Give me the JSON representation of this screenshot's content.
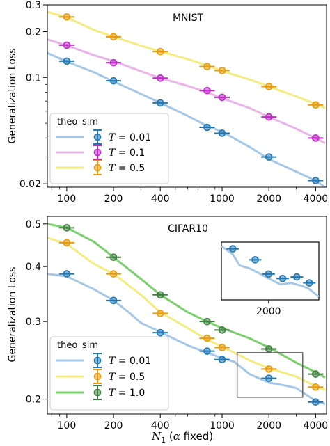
{
  "chart_data": [
    {
      "type": "line",
      "title": "MNIST",
      "xlabel": "",
      "ylabel": "Generalization Loss",
      "xscale": "log",
      "yscale": "log",
      "xlim": [
        75,
        4700
      ],
      "ylim": [
        0.019,
        0.3
      ],
      "xticks": [
        100,
        200,
        400,
        1000,
        2000,
        4000
      ],
      "xtick_labels": [
        "100",
        "200",
        "400",
        "1000",
        "2000",
        "4000"
      ],
      "yticks": [
        0.02,
        0.1,
        0.2,
        0.3
      ],
      "ytick_labels": [
        "0.02",
        "0.1",
        "0.2",
        "0.3"
      ],
      "legend": {
        "placement": "lower-left",
        "col_headers": [
          "theo",
          "sim"
        ],
        "entries": [
          "T=0.01",
          "T=0.1",
          "T=0.5"
        ]
      },
      "series": [
        {
          "name": "T=0.01",
          "color": "#1f77b4",
          "line_color": "#a6c8e8",
          "theory": [
            [
              75,
              0.145
            ],
            [
              100,
              0.127
            ],
            [
              150,
              0.108
            ],
            [
              200,
              0.094
            ],
            [
              300,
              0.078
            ],
            [
              400,
              0.068
            ],
            [
              600,
              0.056
            ],
            [
              800,
              0.048
            ],
            [
              1000,
              0.044
            ],
            [
              1500,
              0.035
            ],
            [
              2000,
              0.029
            ],
            [
              3000,
              0.024
            ],
            [
              4000,
              0.021
            ],
            [
              4600,
              0.019
            ]
          ],
          "sim_x": [
            100,
            200,
            400,
            800,
            1000,
            2000,
            4000
          ],
          "sim_y": [
            0.128,
            0.095,
            0.068,
            0.047,
            0.043,
            0.03,
            0.021
          ]
        },
        {
          "name": "T=0.1",
          "color": "#c02ac8",
          "line_color": "#e9b4ea",
          "theory": [
            [
              75,
              0.178
            ],
            [
              100,
              0.162
            ],
            [
              150,
              0.14
            ],
            [
              200,
              0.128
            ],
            [
              300,
              0.11
            ],
            [
              400,
              0.099
            ],
            [
              600,
              0.088
            ],
            [
              800,
              0.08
            ],
            [
              1000,
              0.073
            ],
            [
              1500,
              0.063
            ],
            [
              2000,
              0.055
            ],
            [
              3000,
              0.046
            ],
            [
              4000,
              0.04
            ],
            [
              4600,
              0.037
            ]
          ],
          "sim_x": [
            100,
            200,
            400,
            800,
            1000,
            2000,
            4000
          ],
          "sim_y": [
            0.163,
            0.125,
            0.099,
            0.082,
            0.074,
            0.055,
            0.04
          ]
        },
        {
          "name": "T=0.5",
          "color": "#e89a0e",
          "line_color": "#f4ec7e",
          "theory": [
            [
              75,
              0.27
            ],
            [
              100,
              0.248
            ],
            [
              150,
              0.205
            ],
            [
              200,
              0.185
            ],
            [
              300,
              0.162
            ],
            [
              400,
              0.148
            ],
            [
              600,
              0.132
            ],
            [
              800,
              0.12
            ],
            [
              1000,
              0.11
            ],
            [
              1500,
              0.097
            ],
            [
              2000,
              0.087
            ],
            [
              3000,
              0.075
            ],
            [
              4000,
              0.067
            ],
            [
              4600,
              0.063
            ]
          ],
          "sim_x": [
            100,
            200,
            400,
            800,
            1000,
            2000,
            4000
          ],
          "sim_y": [
            0.25,
            0.185,
            0.148,
            0.118,
            0.111,
            0.087,
            0.066
          ]
        }
      ]
    },
    {
      "type": "line",
      "title": "CIFAR10",
      "xlabel": "N₁ (α fixed)",
      "ylabel": "Generalization Loss",
      "xscale": "log",
      "yscale": "log",
      "xlim": [
        75,
        4700
      ],
      "ylim": [
        0.185,
        0.52
      ],
      "xticks": [
        100,
        200,
        400,
        1000,
        2000,
        4000
      ],
      "xtick_labels": [
        "100",
        "200",
        "400",
        "1000",
        "2000",
        "4000"
      ],
      "yticks": [
        0.2,
        0.3,
        0.4,
        0.5
      ],
      "ytick_labels": [
        "0.2",
        "0.3",
        "0.4",
        "0.5"
      ],
      "legend": {
        "placement": "lower-left",
        "col_headers": [
          "theo",
          "sim"
        ],
        "entries": [
          "T=0.01",
          "T=0.5",
          "T=1.0"
        ]
      },
      "series": [
        {
          "name": "T=0.01",
          "color": "#1f77b4",
          "line_color": "#a6c8e8",
          "theory": [
            [
              75,
              0.385
            ],
            [
              100,
              0.38
            ],
            [
              150,
              0.355
            ],
            [
              200,
              0.335
            ],
            [
              250,
              0.315
            ],
            [
              300,
              0.298
            ],
            [
              400,
              0.284
            ],
            [
              600,
              0.265
            ],
            [
              800,
              0.255
            ],
            [
              1000,
              0.248
            ],
            [
              1200,
              0.243
            ],
            [
              1500,
              0.228
            ],
            [
              2000,
              0.218
            ],
            [
              2500,
              0.215
            ],
            [
              3000,
              0.212
            ],
            [
              4000,
              0.198
            ],
            [
              4600,
              0.195
            ]
          ],
          "sim_x": [
            100,
            200,
            400,
            800,
            1000,
            2000,
            4000
          ],
          "sim_y": [
            0.385,
            0.335,
            0.283,
            0.257,
            0.246,
            0.223,
            0.197
          ]
        },
        {
          "name": "T=0.5",
          "color": "#e89a0e",
          "line_color": "#f4ec7e",
          "theory": [
            [
              75,
              0.465
            ],
            [
              100,
              0.45
            ],
            [
              150,
              0.405
            ],
            [
              200,
              0.385
            ],
            [
              300,
              0.345
            ],
            [
              400,
              0.315
            ],
            [
              600,
              0.29
            ],
            [
              800,
              0.273
            ],
            [
              1000,
              0.263
            ],
            [
              1500,
              0.245
            ],
            [
              2000,
              0.235
            ],
            [
              3000,
              0.225
            ],
            [
              4000,
              0.214
            ],
            [
              4600,
              0.21
            ]
          ],
          "sim_x": [
            100,
            200,
            400,
            800,
            1000,
            2000,
            4000
          ],
          "sim_y": [
            0.453,
            0.385,
            0.313,
            0.275,
            0.262,
            0.234,
            0.213
          ]
        },
        {
          "name": "T=1.0",
          "color": "#3f7f3f",
          "line_color": "#7ccf6e",
          "theory": [
            [
              75,
              0.5
            ],
            [
              100,
              0.49
            ],
            [
              150,
              0.455
            ],
            [
              200,
              0.42
            ],
            [
              300,
              0.375
            ],
            [
              400,
              0.345
            ],
            [
              600,
              0.315
            ],
            [
              800,
              0.3
            ],
            [
              1000,
              0.29
            ],
            [
              1500,
              0.275
            ],
            [
              2000,
              0.262
            ],
            [
              3000,
              0.242
            ],
            [
              4000,
              0.23
            ],
            [
              4600,
              0.224
            ]
          ],
          "sim_x": [
            100,
            200,
            400,
            800,
            1000,
            2000,
            4000
          ],
          "sim_y": [
            0.49,
            0.42,
            0.345,
            0.3,
            0.287,
            0.26,
            0.228
          ]
        }
      ],
      "inset": {
        "zoom_box": {
          "x": [
            1250,
            3300
          ],
          "y": [
            0.202,
            0.255
          ]
        },
        "xlim": [
          1250,
          3300
        ],
        "ylim": [
          0.205,
          0.245
        ],
        "xticks": [
          2000
        ],
        "xtick_labels": [
          "2000"
        ],
        "series_index": 0
      }
    }
  ]
}
